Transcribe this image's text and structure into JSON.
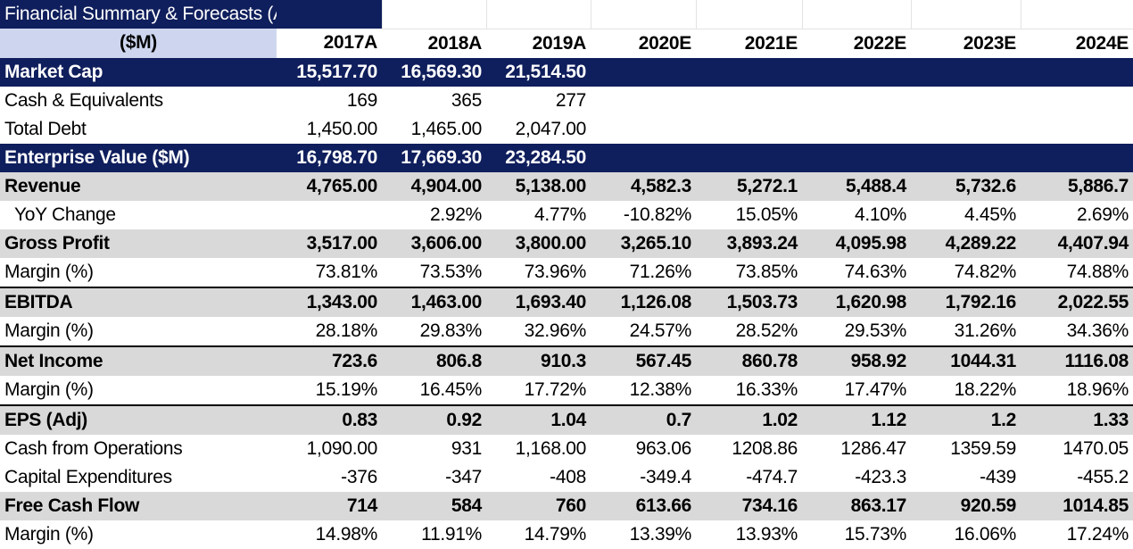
{
  "title": "Financial Summary & Forecasts (Annual)",
  "units": "($M)",
  "years": [
    "2017A",
    "2018A",
    "2019A",
    "2020E",
    "2021E",
    "2022E",
    "2023E",
    "2024E"
  ],
  "rows": [
    {
      "label": "Market Cap",
      "values": [
        "15,517.70",
        "16,569.30",
        "21,514.50",
        "",
        "",
        "",
        "",
        ""
      ]
    },
    {
      "label": "Cash & Equivalents",
      "values": [
        "169",
        "365",
        "277",
        "",
        "",
        "",
        "",
        ""
      ]
    },
    {
      "label": "Total Debt",
      "values": [
        "1,450.00",
        "1,465.00",
        "2,047.00",
        "",
        "",
        "",
        "",
        ""
      ]
    },
    {
      "label": "Enterprise Value ($M)",
      "values": [
        "16,798.70",
        "17,669.30",
        "23,284.50",
        "",
        "",
        "",
        "",
        ""
      ]
    },
    {
      "label": "Revenue",
      "values": [
        "4,765.00",
        "4,904.00",
        "5,138.00",
        "4,582.3",
        "5,272.1",
        "5,488.4",
        "5,732.6",
        "5,886.7"
      ]
    },
    {
      "label": "YoY Change",
      "values": [
        "",
        "2.92%",
        "4.77%",
        "-10.82%",
        "15.05%",
        "4.10%",
        "4.45%",
        "2.69%"
      ]
    },
    {
      "label": "Gross Profit",
      "values": [
        "3,517.00",
        "3,606.00",
        "3,800.00",
        "3,265.10",
        "3,893.24",
        "4,095.98",
        "4,289.22",
        "4,407.94"
      ]
    },
    {
      "label": "Margin (%)",
      "values": [
        "73.81%",
        "73.53%",
        "73.96%",
        "71.26%",
        "73.85%",
        "74.63%",
        "74.82%",
        "74.88%"
      ]
    },
    {
      "label": "EBITDA",
      "values": [
        "1,343.00",
        "1,463.00",
        "1,693.40",
        "1,126.08",
        "1,503.73",
        "1,620.98",
        "1,792.16",
        "2,022.55"
      ]
    },
    {
      "label": "Margin (%)",
      "values": [
        "28.18%",
        "29.83%",
        "32.96%",
        "24.57%",
        "28.52%",
        "29.53%",
        "31.26%",
        "34.36%"
      ]
    },
    {
      "label": "Net Income",
      "values": [
        "723.6",
        "806.8",
        "910.3",
        "567.45",
        "860.78",
        "958.92",
        "1044.31",
        "1116.08"
      ]
    },
    {
      "label": "Margin (%)",
      "values": [
        "15.19%",
        "16.45%",
        "17.72%",
        "12.38%",
        "16.33%",
        "17.47%",
        "18.22%",
        "18.96%"
      ]
    },
    {
      "label": "EPS (Adj)",
      "values": [
        "0.83",
        "0.92",
        "1.04",
        "0.7",
        "1.02",
        "1.12",
        "1.2",
        "1.33"
      ]
    },
    {
      "label": "Cash from Operations",
      "values": [
        "1,090.00",
        "931",
        "1,168.00",
        "963.06",
        "1208.86",
        "1286.47",
        "1359.59",
        "1470.05"
      ]
    },
    {
      "label": "Capital Expenditures",
      "values": [
        "-376",
        "-347",
        "-408",
        "-349.4",
        "-474.7",
        "-423.3",
        "-439",
        "-455.2"
      ]
    },
    {
      "label": "Free Cash Flow",
      "values": [
        "714",
        "584",
        "760",
        "613.66",
        "734.16",
        "863.17",
        "920.59",
        "1014.85"
      ]
    },
    {
      "label": "Margin (%)",
      "values": [
        "14.98%",
        "11.91%",
        "14.79%",
        "13.39%",
        "13.93%",
        "15.73%",
        "16.06%",
        "17.24%"
      ]
    }
  ],
  "colors": {
    "header_navy": "#0f1e5c",
    "units_blue": "#cdd6ee",
    "row_gray": "#d9d9d9"
  }
}
